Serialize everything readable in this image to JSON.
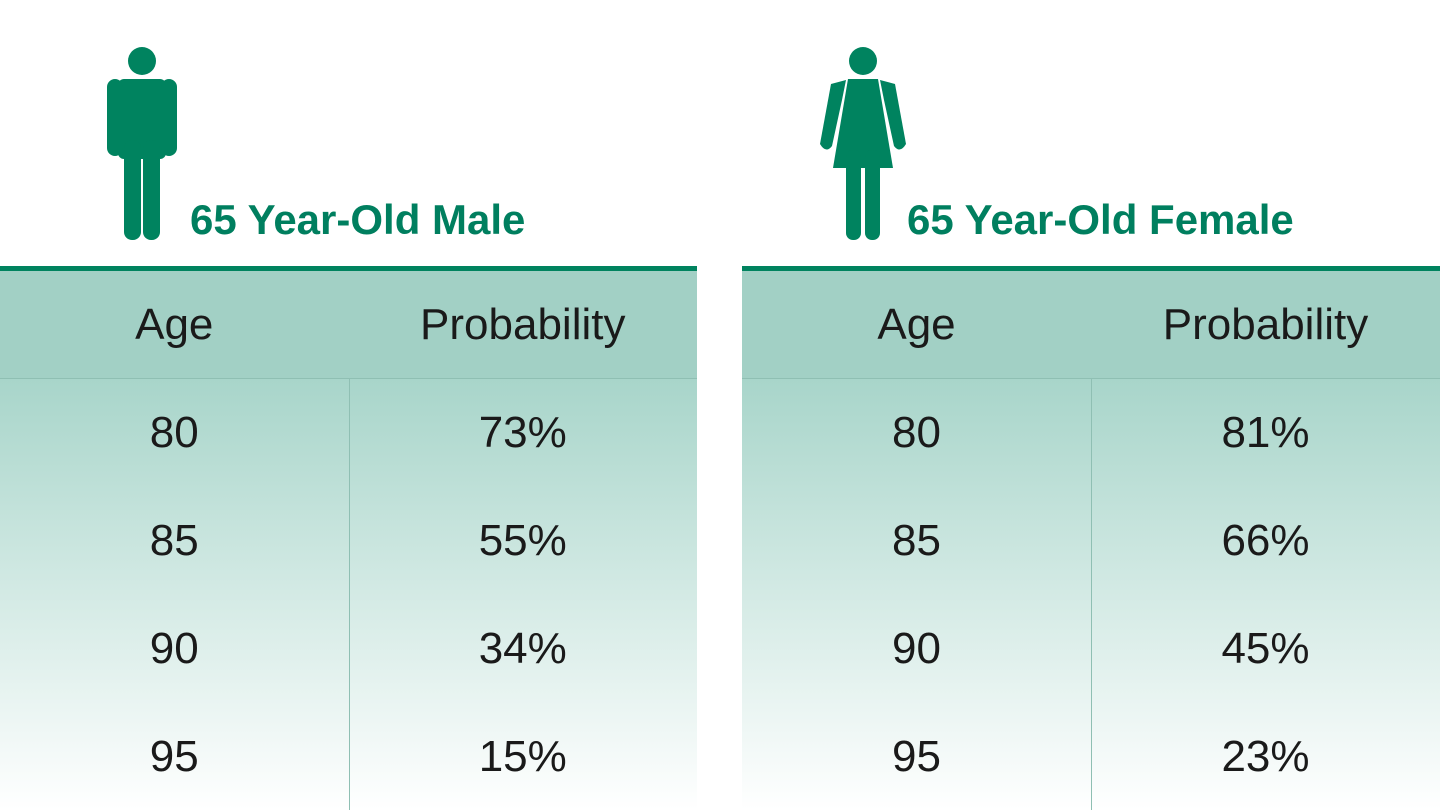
{
  "panels": [
    {
      "title": "65 Year-Old Male",
      "table": {
        "header": [
          "Age",
          "Probability"
        ],
        "rows": [
          [
            "80",
            "73%"
          ],
          [
            "85",
            "55%"
          ],
          [
            "90",
            "34%"
          ],
          [
            "95",
            "15%"
          ]
        ]
      }
    },
    {
      "title": "65 Year-Old Female",
      "table": {
        "header": [
          "Age",
          "Probability"
        ],
        "rows": [
          [
            "80",
            "81%"
          ],
          [
            "85",
            "66%"
          ],
          [
            "90",
            "45%"
          ],
          [
            "95",
            "23%"
          ]
        ]
      }
    }
  ]
}
